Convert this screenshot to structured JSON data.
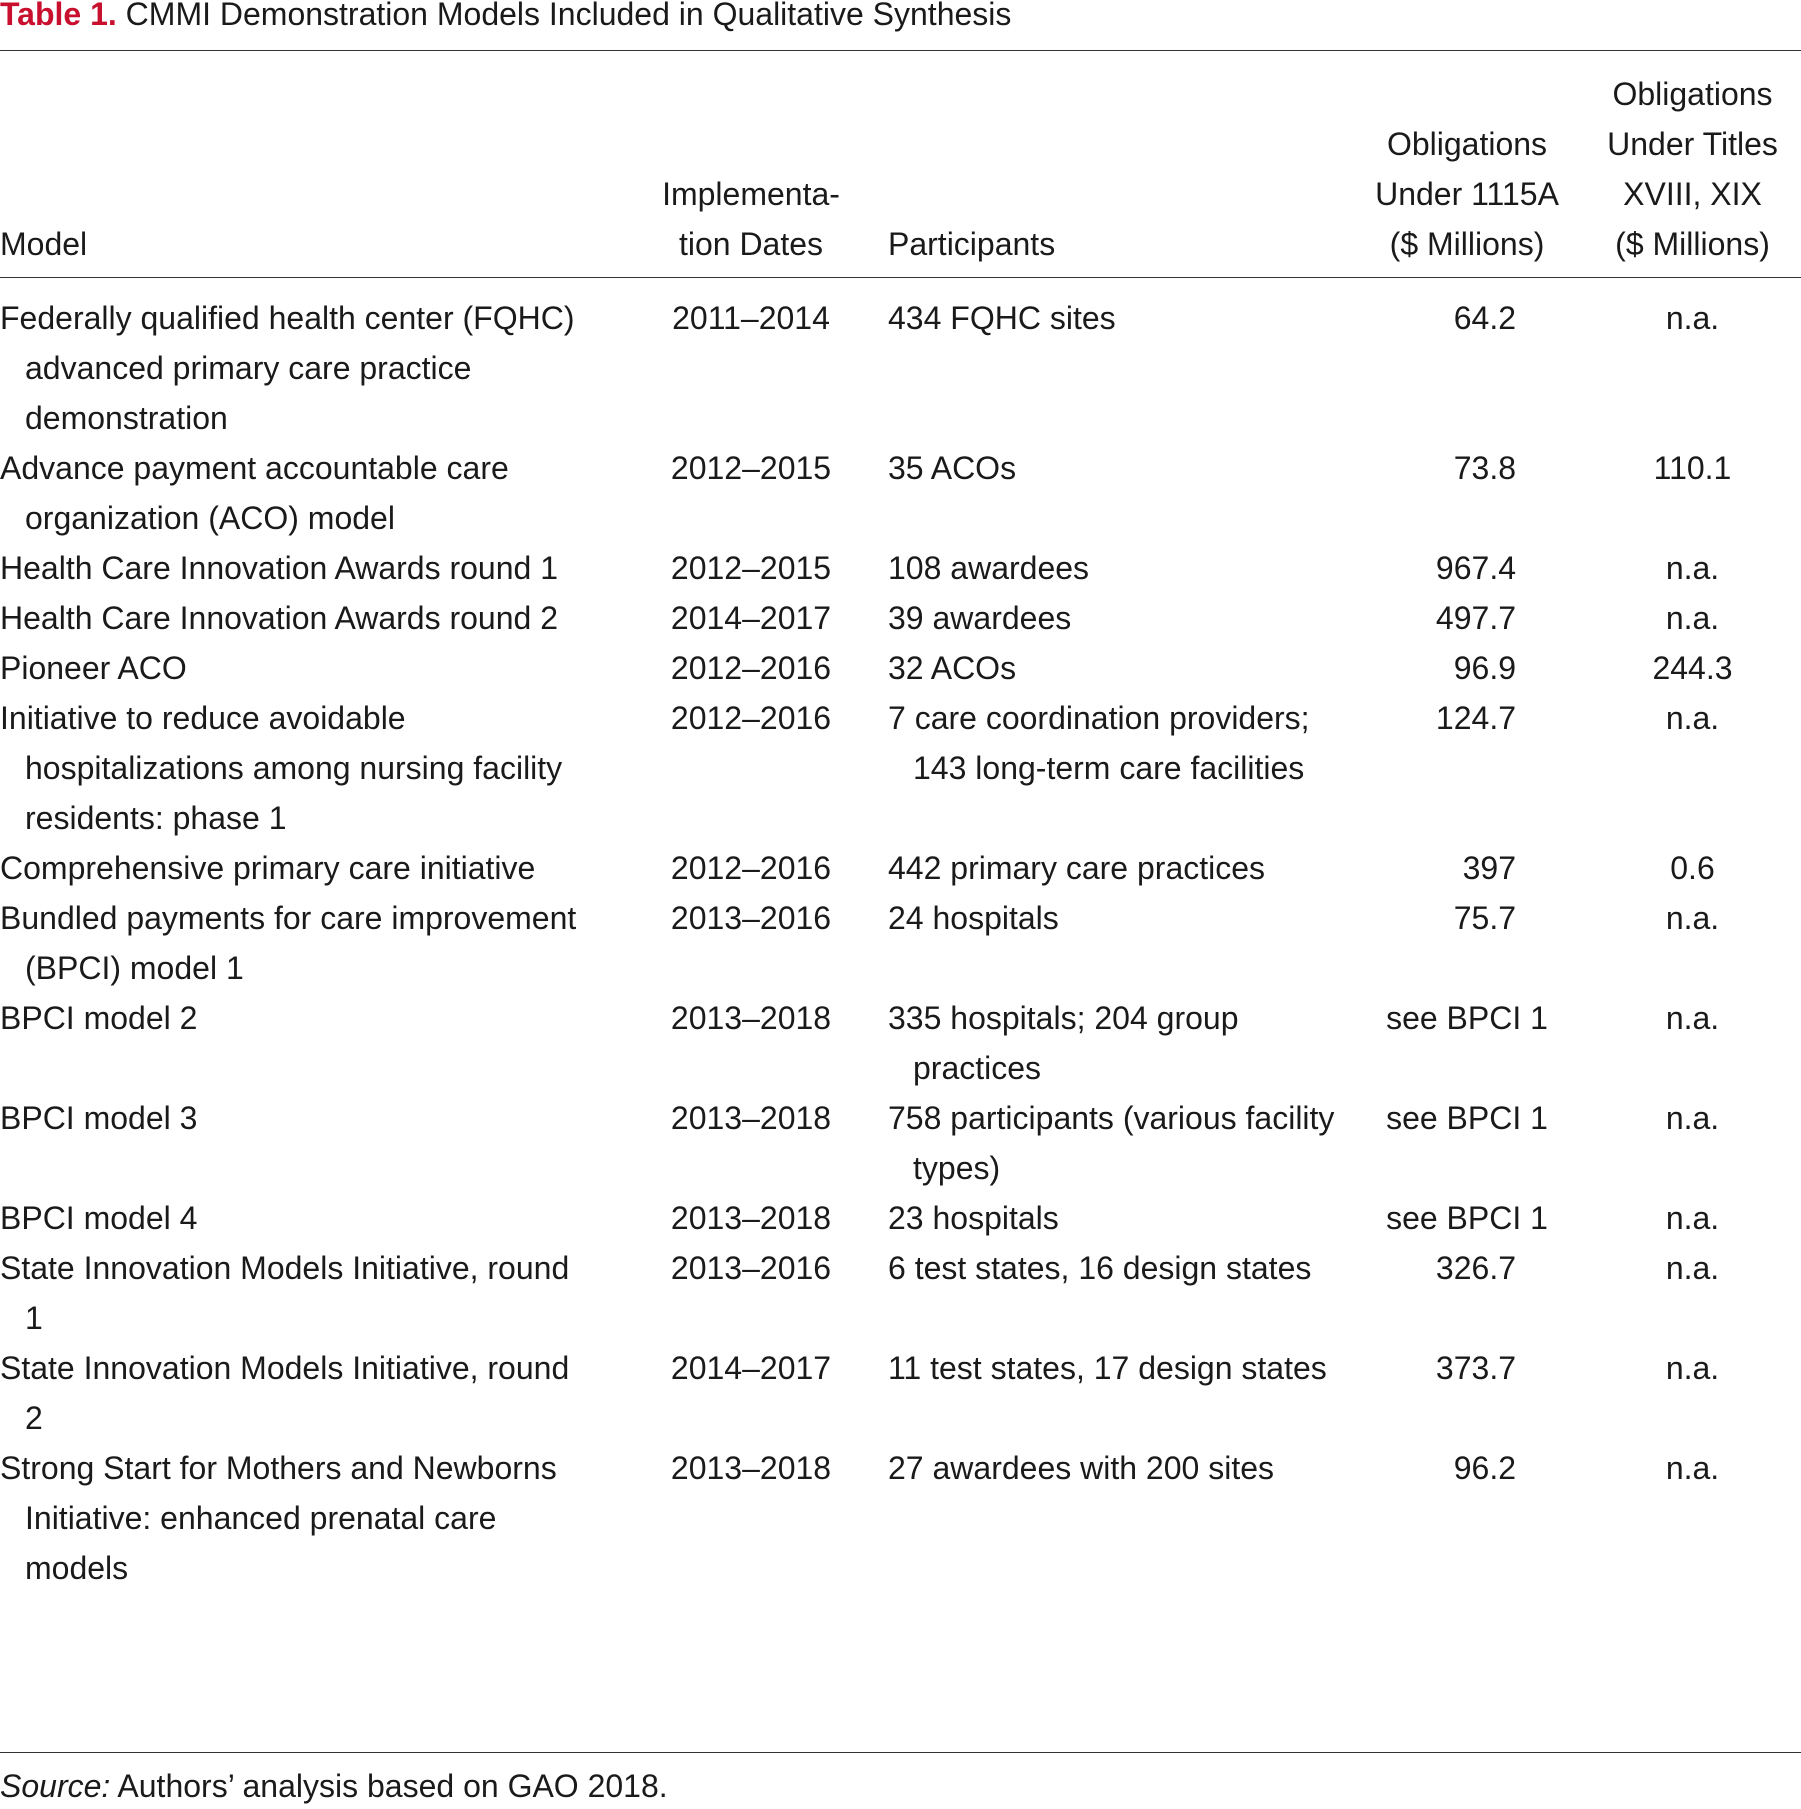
{
  "caption": {
    "label": "Table 1.",
    "text": " CMMI Demonstration Models Included in Qualitative Synthesis"
  },
  "headers": {
    "model": "Model",
    "dates": "Implementa-\ntion Dates",
    "participants": "Participants",
    "obligations_1115a": "Obligations\nUnder 1115A\n($ Millions)",
    "obligations_titles": "Obligations\nUnder Titles\nXVIII, XIX\n($ Millions)"
  },
  "rows": [
    {
      "model": "Federally qualified health center (FQHC) advanced primary care practice demonstration",
      "dates": "2011–2014",
      "participants": "434 FQHC sites",
      "obligations_1115a": "64.2",
      "obligations_titles": "n.a."
    },
    {
      "model": "Advance payment accountable care organization (ACO) model",
      "dates": "2012–2015",
      "participants": "35 ACOs",
      "obligations_1115a": "73.8",
      "obligations_titles": "110.1"
    },
    {
      "model": "Health Care Innovation Awards round 1",
      "dates": "2012–2015",
      "participants": "108 awardees",
      "obligations_1115a": "967.4",
      "obligations_titles": "n.a."
    },
    {
      "model": "Health Care Innovation Awards round 2",
      "dates": "2014–2017",
      "participants": "39 awardees",
      "obligations_1115a": "497.7",
      "obligations_titles": "n.a."
    },
    {
      "model": "Pioneer ACO",
      "dates": "2012–2016",
      "participants": "32 ACOs",
      "obligations_1115a": "96.9",
      "obligations_titles": "244.3"
    },
    {
      "model": "Initiative to reduce avoidable hospitalizations among nursing facility residents: phase 1",
      "dates": "2012–2016",
      "participants": "7 care coordination providers; 143 long-term care facilities",
      "obligations_1115a": "124.7",
      "obligations_titles": "n.a."
    },
    {
      "model": "Comprehensive primary care initiative",
      "dates": "2012–2016",
      "participants": "442 primary care practices",
      "obligations_1115a": "397",
      "obligations_titles": "0.6"
    },
    {
      "model": "Bundled payments for care improvement (BPCI) model 1",
      "dates": "2013–2016",
      "participants": "24 hospitals",
      "obligations_1115a": "75.7",
      "obligations_titles": "n.a."
    },
    {
      "model": "BPCI model 2",
      "dates": "2013–2018",
      "participants": "335 hospitals; 204 group practices",
      "obligations_1115a": "see BPCI 1",
      "obligations_titles": "n.a."
    },
    {
      "model": "BPCI model 3",
      "dates": "2013–2018",
      "participants": "758 participants (various facility types)",
      "obligations_1115a": "see BPCI 1",
      "obligations_titles": "n.a."
    },
    {
      "model": "BPCI model 4",
      "dates": "2013–2018",
      "participants": "23 hospitals",
      "obligations_1115a": "see BPCI 1",
      "obligations_titles": "n.a."
    },
    {
      "model": "State Innovation Models Initiative, round 1",
      "dates": "2013–2016",
      "participants": "6 test states, 16 design states",
      "obligations_1115a": "326.7",
      "obligations_titles": "n.a."
    },
    {
      "model": "State Innovation Models Initiative, round 2",
      "dates": "2014–2017",
      "participants": "11 test states, 17 design states",
      "obligations_1115a": "373.7",
      "obligations_titles": "n.a."
    },
    {
      "model": "Strong Start for Mothers and Newborns Initiative: enhanced prenatal care models",
      "dates": "2013–2018",
      "participants": "27 awardees with 200 sites",
      "obligations_1115a": "96.2",
      "obligations_titles": "n.a."
    }
  ],
  "source": {
    "label": "Source:",
    "text": " Authors’ analysis based on GAO 2018."
  },
  "colors": {
    "accent": "#c8102e",
    "text": "#1a1a1a",
    "rule": "#333333"
  }
}
